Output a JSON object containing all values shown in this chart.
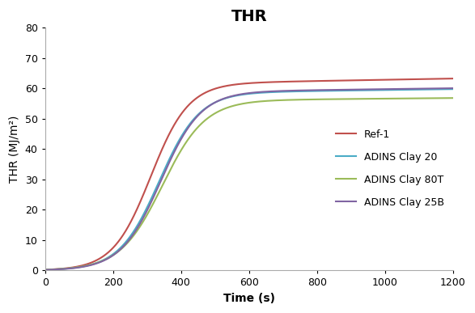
{
  "title": "THR",
  "xlabel": "Time (s)",
  "ylabel": "THR (MJ/m²)",
  "xlim": [
    0,
    1200
  ],
  "ylim": [
    0,
    80
  ],
  "xticks": [
    0,
    200,
    400,
    600,
    800,
    1000,
    1200
  ],
  "yticks": [
    0,
    10,
    20,
    30,
    40,
    50,
    60,
    70,
    80
  ],
  "series": [
    {
      "label": "Ref-1",
      "color": "#C0504D",
      "plateau_value": 61.5,
      "inflection": 310,
      "steepness": 0.018,
      "slow_rise": 0.002
    },
    {
      "label": "ADINS Clay 20",
      "color": "#4BACC6",
      "plateau_value": 58.5,
      "inflection": 335,
      "steepness": 0.017,
      "slow_rise": 0.0015
    },
    {
      "label": "ADINS Clay 80T",
      "color": "#9BBB59",
      "plateau_value": 56.0,
      "inflection": 345,
      "steepness": 0.016,
      "slow_rise": 0.001
    },
    {
      "label": "ADINS Clay 25B",
      "color": "#8064A2",
      "plateau_value": 58.8,
      "inflection": 340,
      "steepness": 0.017,
      "slow_rise": 0.0015
    }
  ],
  "background_color": "#FFFFFF",
  "title_fontsize": 14,
  "label_fontsize": 10,
  "tick_fontsize": 9,
  "legend_fontsize": 9
}
